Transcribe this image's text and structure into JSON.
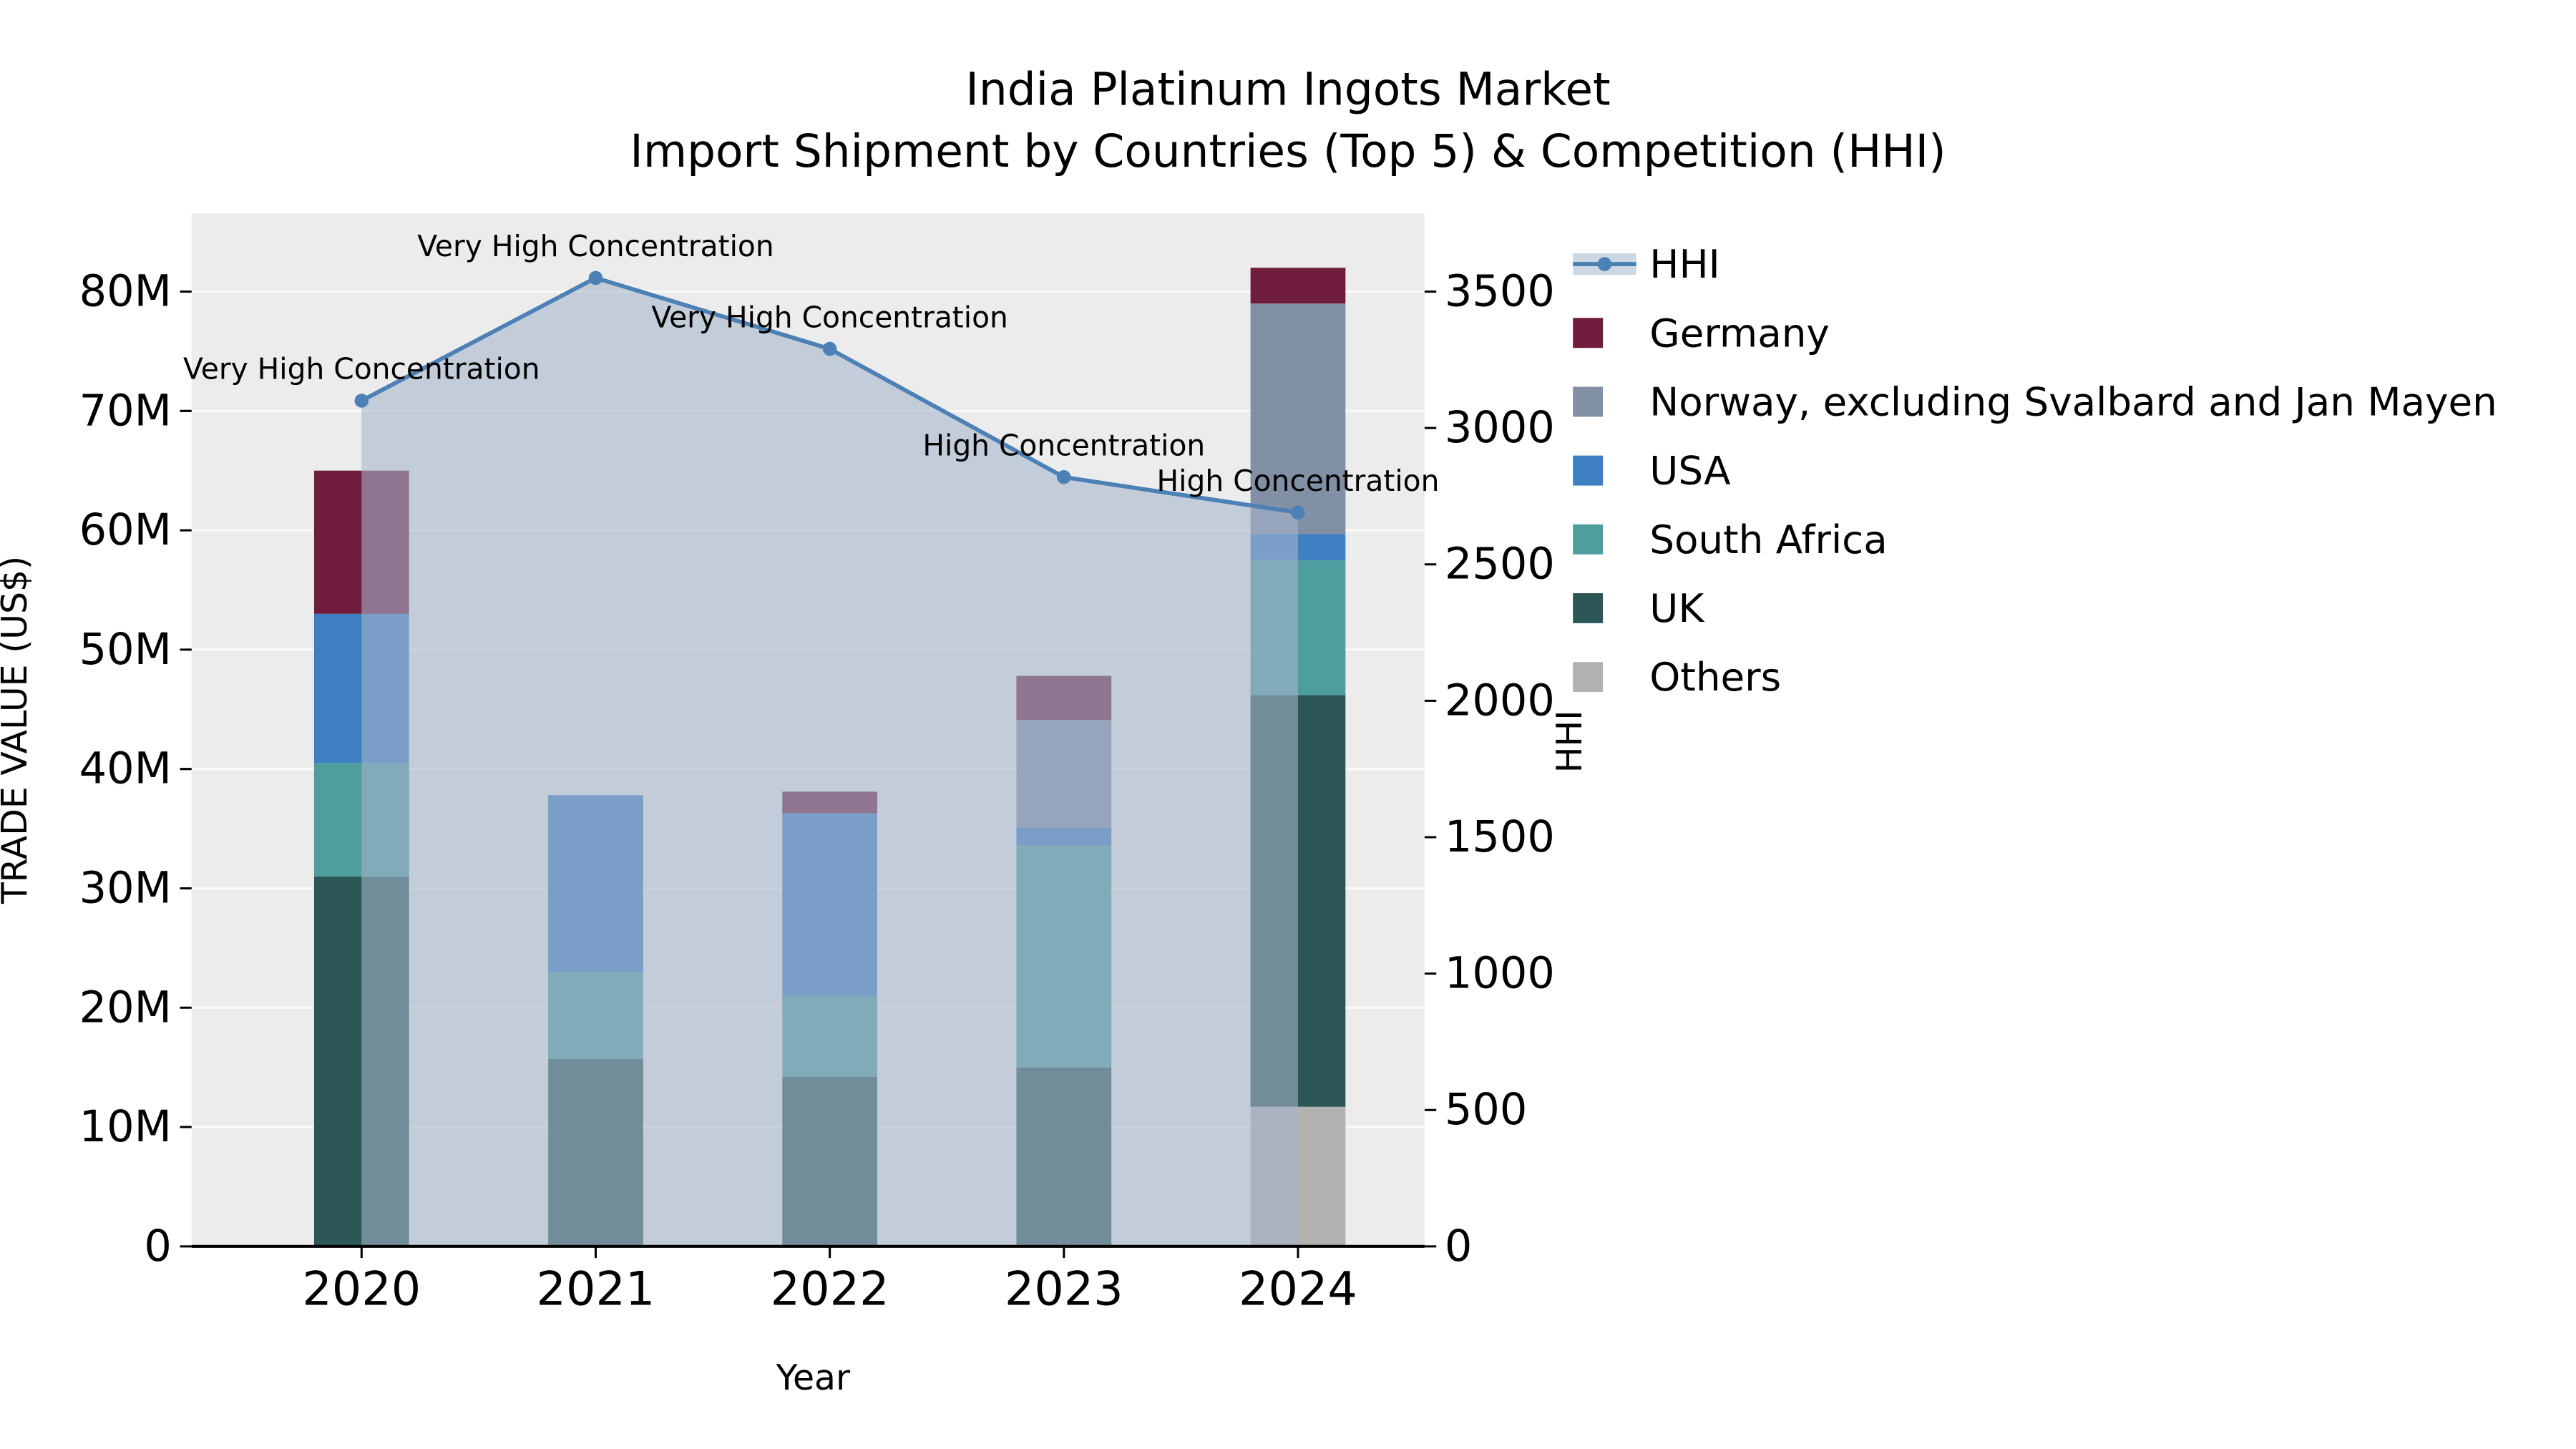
{
  "title": {
    "line1": "India Platinum Ingots Market",
    "line2": "Import Shipment by Countries (Top 5) & Competition (HHI)"
  },
  "chart_data": {
    "type": "composite",
    "subtypes": [
      "stacked-bar",
      "line",
      "area"
    ],
    "categories": [
      "2020",
      "2021",
      "2022",
      "2023",
      "2024"
    ],
    "xlabel": "Year",
    "ylabel_left": "TRADE VALUE (US$)",
    "ylabel_right": "HHI",
    "values_unit": "million US$",
    "y_left": {
      "ticks": [
        "0",
        "10M",
        "20M",
        "30M",
        "40M",
        "50M",
        "60M",
        "70M",
        "80M"
      ],
      "tick_values": [
        0,
        10,
        20,
        30,
        40,
        50,
        60,
        70,
        80
      ],
      "range_display": [
        0,
        86.5
      ]
    },
    "y_right": {
      "ticks": [
        0,
        500,
        1000,
        1500,
        2000,
        2500,
        3000,
        3500
      ],
      "range_display": [
        0,
        3785
      ]
    },
    "series": [
      {
        "name": "Others",
        "color": "#b4b1b1",
        "values": [
          0,
          0,
          0,
          0,
          11.7
        ]
      },
      {
        "name": "UK",
        "color": "#2d5757",
        "values": [
          31,
          15.7,
          14.2,
          15,
          34.5
        ]
      },
      {
        "name": "South Africa",
        "color": "#4f9e9e",
        "values": [
          9.5,
          7.3,
          6.8,
          18.6,
          11.3
        ]
      },
      {
        "name": "USA",
        "color": "#3e7fc1",
        "values": [
          12.5,
          14.8,
          15.3,
          1.5,
          2.2
        ]
      },
      {
        "name": "Norway, excluding Svalbard and Jan Mayen",
        "color": "#8290a6",
        "values": [
          0,
          0,
          0,
          9,
          19.3
        ]
      },
      {
        "name": "Germany",
        "color": "#701d3d",
        "values": [
          12,
          0,
          1.8,
          3.7,
          3.0
        ]
      }
    ],
    "hhi": {
      "name": "HHI",
      "color": "#4d81b5",
      "area_color": "rgba(165,181,203,0.58)",
      "legend_band": "#ccd7e4",
      "values": [
        3100,
        3550,
        3290,
        2820,
        2690
      ]
    },
    "annotations": [
      "Very High Concentration",
      "Very High Concentration",
      "Very High Concentration",
      "High Concentration",
      "High Concentration"
    ],
    "legend": [
      "HHI",
      "Germany",
      "Norway, excluding Svalbard and Jan Mayen",
      "USA",
      "South Africa",
      "UK",
      "Others"
    ],
    "legend_position": "right",
    "grid": true,
    "colors": {
      "panel": "#ececec",
      "grid": "#fafafa"
    }
  }
}
